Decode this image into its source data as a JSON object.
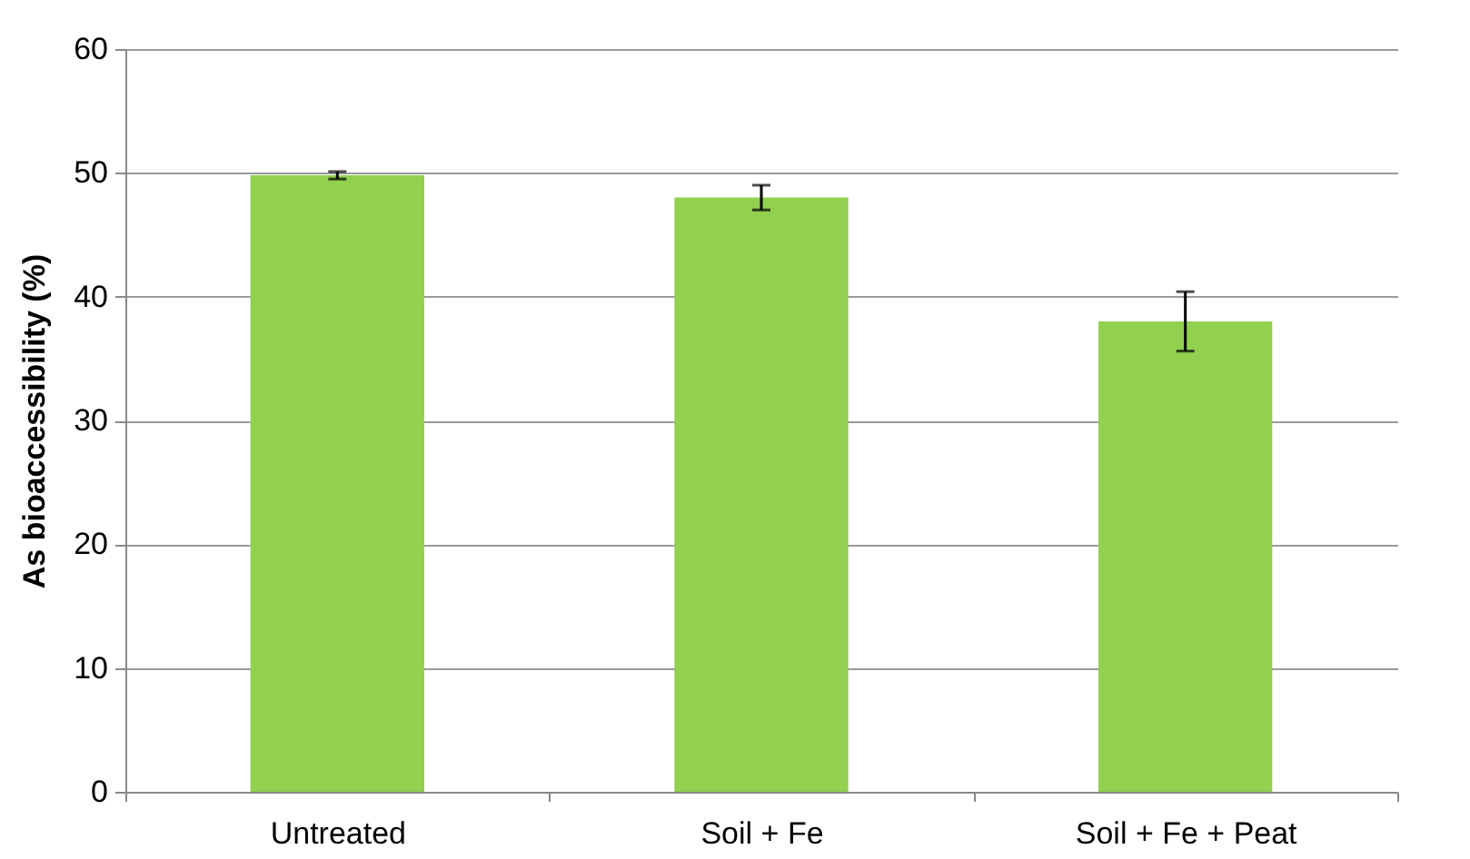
{
  "chart_data": {
    "type": "bar",
    "ylabel": "As bioaccessibility  (%)",
    "categories": [
      "Untreated",
      "Soil + Fe",
      "Soil + Fe + Peat"
    ],
    "values": [
      49.8,
      48.0,
      38.0
    ],
    "errors": [
      0.3,
      1.0,
      2.4
    ],
    "color": "#92d050",
    "ylim": [
      0,
      60
    ],
    "yticks": [
      0,
      10,
      20,
      30,
      40,
      50,
      60
    ],
    "grid": "y"
  }
}
